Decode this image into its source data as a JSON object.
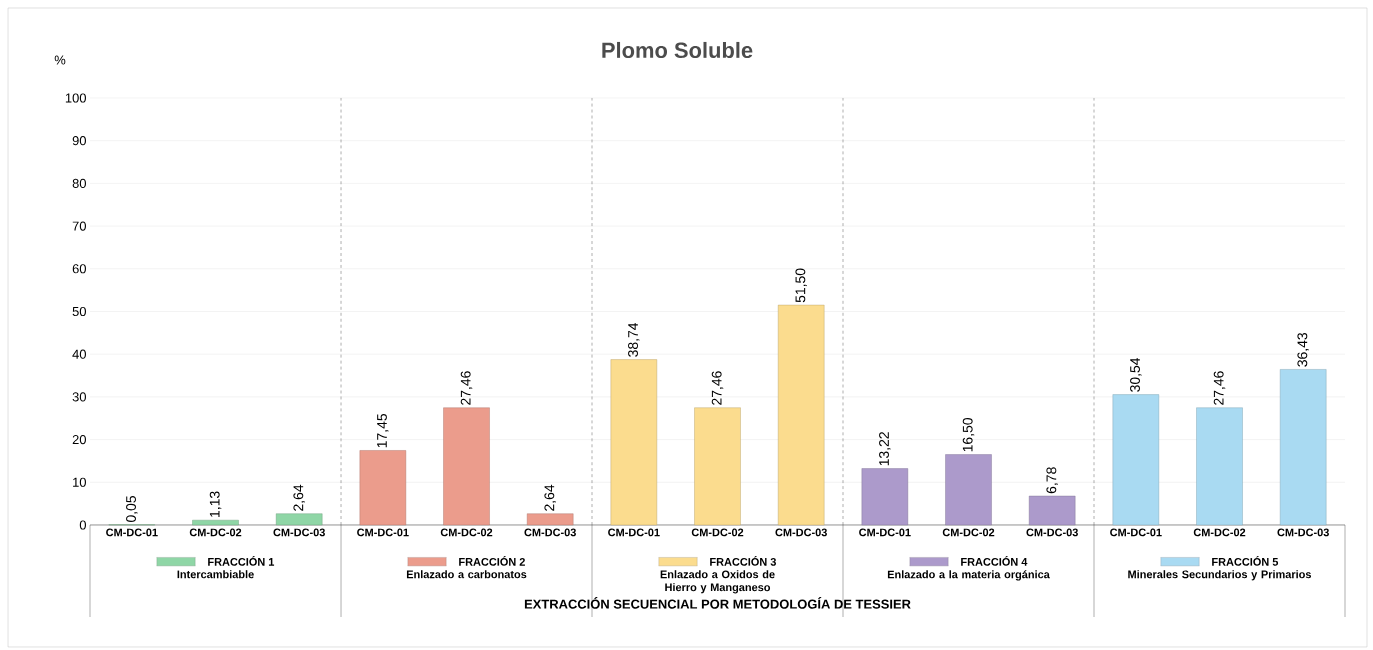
{
  "chart_data": {
    "type": "bar",
    "title": "Plomo Soluble",
    "ylabel": "%",
    "xlabel": "EXTRACCIÓN SECUENCIAL POR METODOLOGÍA DE TESSIER",
    "categories": [
      "CM-DC-01",
      "CM-DC-02",
      "CM-DC-03",
      "CM-DC-01",
      "CM-DC-02",
      "CM-DC-03",
      "CM-DC-01",
      "CM-DC-02",
      "CM-DC-03",
      "CM-DC-01",
      "CM-DC-02",
      "CM-DC-03",
      "CM-DC-01",
      "CM-DC-02",
      "CM-DC-03"
    ],
    "series": [
      {
        "name": "FRACCIÓN 1",
        "color": "#8fd6a6",
        "values": [
          0.05,
          1.13,
          2.64,
          null,
          null,
          null,
          null,
          null,
          null,
          null,
          null,
          null,
          null,
          null,
          null
        ],
        "value_labels": [
          "0,05",
          "1,13",
          "2,64",
          null,
          null,
          null,
          null,
          null,
          null,
          null,
          null,
          null,
          null,
          null,
          null
        ]
      },
      {
        "name": "FRACCIÓN 2",
        "color": "#eb9c8c",
        "values": [
          null,
          null,
          null,
          17.45,
          27.46,
          2.64,
          null,
          null,
          null,
          null,
          null,
          null,
          null,
          null,
          null
        ],
        "value_labels": [
          null,
          null,
          null,
          "17,45",
          "27,46",
          "2,64",
          null,
          null,
          null,
          null,
          null,
          null,
          null,
          null,
          null
        ]
      },
      {
        "name": "FRACCIÓN 3",
        "color": "#fbdc8e",
        "values": [
          null,
          null,
          null,
          null,
          null,
          null,
          38.74,
          27.46,
          51.5,
          null,
          null,
          null,
          null,
          null,
          null
        ],
        "value_labels": [
          null,
          null,
          null,
          null,
          null,
          null,
          "38,74",
          "27,46",
          "51,50",
          null,
          null,
          null,
          null,
          null,
          null
        ]
      },
      {
        "name": "FRACCIÓN 4",
        "color": "#ac9acb",
        "values": [
          null,
          null,
          null,
          null,
          null,
          null,
          null,
          null,
          null,
          13.22,
          16.5,
          6.78,
          null,
          null,
          null
        ],
        "value_labels": [
          null,
          null,
          null,
          null,
          null,
          null,
          null,
          null,
          null,
          "13,22",
          "16,50",
          "6,78",
          null,
          null,
          null
        ]
      },
      {
        "name": "FRACCIÓN 5",
        "color": "#a9daf2",
        "values": [
          null,
          null,
          null,
          null,
          null,
          null,
          null,
          null,
          null,
          null,
          null,
          null,
          30.54,
          27.46,
          36.43
        ],
        "value_labels": [
          null,
          null,
          null,
          null,
          null,
          null,
          null,
          null,
          null,
          null,
          null,
          null,
          "30,54",
          "27,46",
          "36,43"
        ]
      }
    ],
    "annotations": [
      "Intercambiable",
      "Enlazado a carbonatos",
      "Enlazado a Oxidos de Hierro y Manganeso",
      "Enlazado a la materia orgánica",
      "Minerales Secundarios y Primarios"
    ],
    "ylim": [
      0,
      100
    ],
    "yticks": [
      0,
      10,
      20,
      30,
      40,
      50,
      60,
      70,
      80,
      90,
      100
    ],
    "grid": "y",
    "legend": "bottom"
  }
}
